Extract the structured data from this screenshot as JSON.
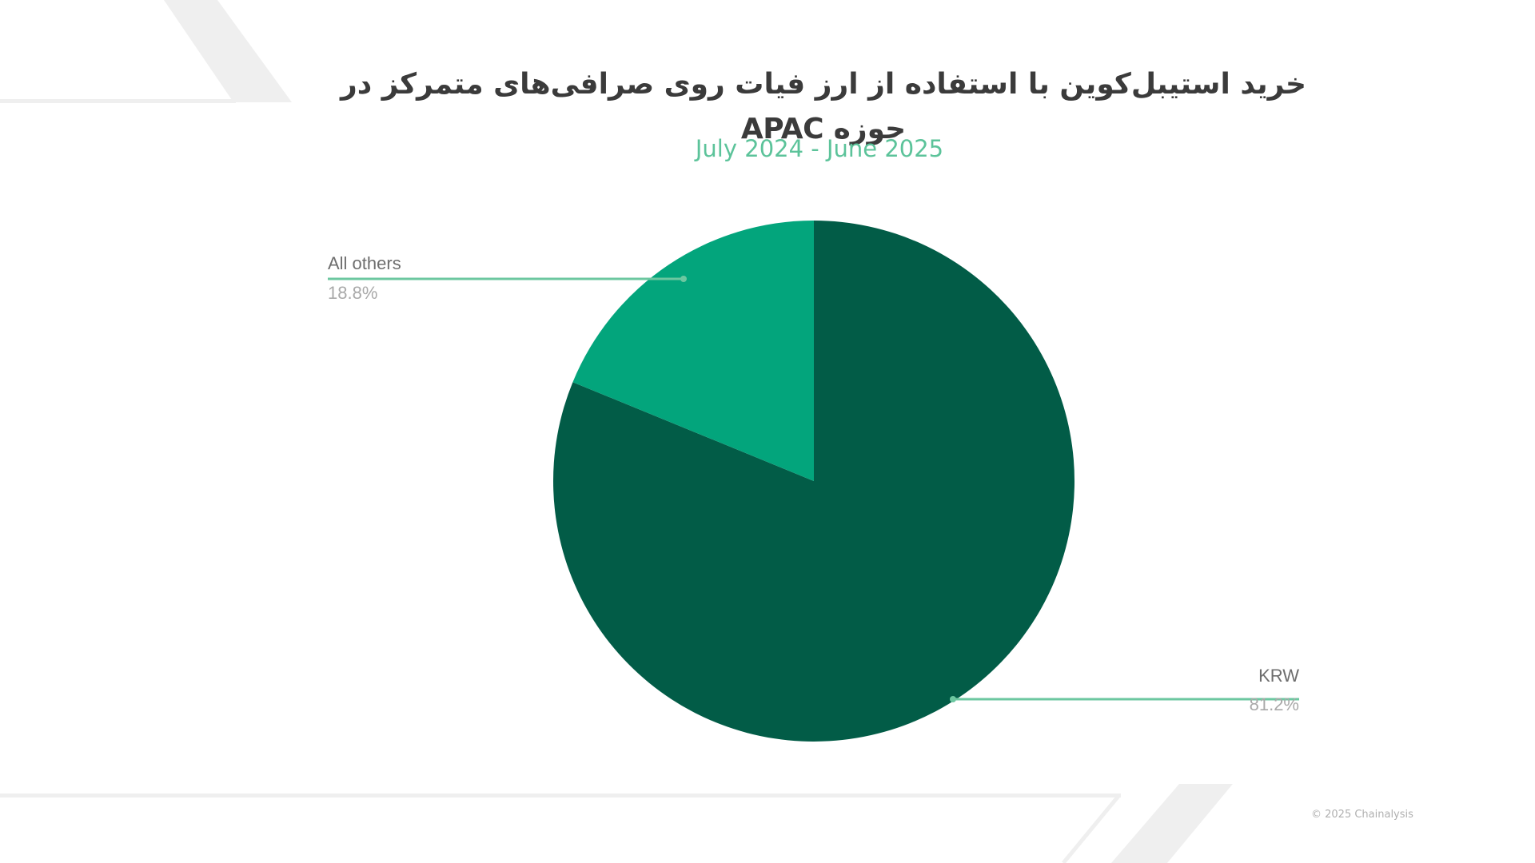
{
  "header": {
    "title": "خرید استیبل‌کوین با استفاده از ارز فیات روی صرافی‌های متمرکز در حوزه APAC",
    "subtitle": "July 2024 - June 2025"
  },
  "footer": {
    "copyright": "© 2025 Chainalysis"
  },
  "colors": {
    "krw": "#025c47",
    "all_others": "#03a57c",
    "leader_line": "#6cc7a0",
    "title": "#3b3b3b",
    "subtitle": "#5cc39a",
    "decor": "#efefef"
  },
  "chart_data": {
    "type": "pie",
    "title": "خرید استیبل‌کوین با استفاده از ارز فیات روی صرافی‌های متمرکز در حوزه APAC",
    "subtitle": "July 2024 - June 2025",
    "categories": [
      "KRW",
      "All others"
    ],
    "values": [
      81.2,
      18.8
    ],
    "labels": [
      {
        "name": "KRW",
        "value": "81.2%"
      },
      {
        "name": "All others",
        "value": "18.8%"
      }
    ],
    "start_angle": "12 o'clock, clockwise",
    "legend": "leader-line labels"
  }
}
